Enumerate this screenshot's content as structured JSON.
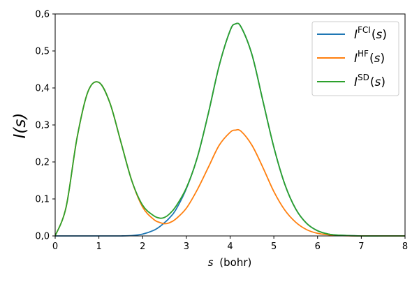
{
  "chart_data": {
    "type": "line",
    "xlabel_var": "s",
    "xlabel_unit": "(bohr)",
    "ylabel": "I(s)",
    "xlim": [
      0,
      8
    ],
    "ylim": [
      0,
      0.6
    ],
    "xticks": [
      0,
      1,
      2,
      3,
      4,
      5,
      6,
      7,
      8
    ],
    "xtick_labels": [
      "0",
      "1",
      "2",
      "3",
      "4",
      "5",
      "6",
      "7",
      "8"
    ],
    "yticks": [
      0,
      0.1,
      0.2,
      0.3,
      0.4,
      0.5,
      0.6
    ],
    "ytick_labels": [
      "0,0",
      "0,1",
      "0,2",
      "0,3",
      "0,4",
      "0,5",
      "0,6"
    ],
    "grid": false,
    "legend_position": "top-right",
    "x": [
      0,
      0.25,
      0.5,
      0.75,
      1.0,
      1.25,
      1.5,
      1.75,
      2.0,
      2.25,
      2.4,
      2.5,
      2.6,
      2.75,
      3.0,
      3.25,
      3.5,
      3.75,
      4.0,
      4.12,
      4.25,
      4.5,
      4.75,
      5.0,
      5.25,
      5.5,
      5.75,
      6.0,
      6.25,
      6.5,
      7.0,
      7.5,
      8.0
    ],
    "series": [
      {
        "name": "I^FCI(s)",
        "color": "#1f77b4",
        "values": [
          0,
          0,
          0,
          0,
          0,
          0,
          0,
          0.001,
          0.005,
          0.015,
          0.026,
          0.036,
          0.047,
          0.069,
          0.128,
          0.212,
          0.33,
          0.46,
          0.555,
          0.573,
          0.565,
          0.49,
          0.365,
          0.24,
          0.14,
          0.073,
          0.034,
          0.014,
          0.005,
          0.002,
          0,
          0,
          0
        ]
      },
      {
        "name": "I^HF(s)",
        "color": "#ff7f0e",
        "values": [
          0,
          0.078,
          0.265,
          0.39,
          0.415,
          0.36,
          0.255,
          0.15,
          0.078,
          0.045,
          0.036,
          0.033,
          0.035,
          0.045,
          0.075,
          0.125,
          0.185,
          0.245,
          0.28,
          0.286,
          0.283,
          0.245,
          0.185,
          0.12,
          0.07,
          0.037,
          0.017,
          0.007,
          0.003,
          0.001,
          0,
          0,
          0
        ]
      },
      {
        "name": "I^SD(s)",
        "color": "#2ca02c",
        "values": [
          0,
          0.078,
          0.265,
          0.39,
          0.415,
          0.36,
          0.255,
          0.15,
          0.083,
          0.055,
          0.048,
          0.05,
          0.058,
          0.078,
          0.13,
          0.212,
          0.33,
          0.46,
          0.555,
          0.573,
          0.565,
          0.49,
          0.365,
          0.24,
          0.14,
          0.073,
          0.034,
          0.014,
          0.005,
          0.002,
          0,
          0,
          0
        ]
      }
    ],
    "legend": [
      {
        "base": "I",
        "sup": "FCI",
        "arg": "(s)",
        "color": "#1f77b4"
      },
      {
        "base": "I",
        "sup": "HF",
        "arg": "(s)",
        "color": "#ff7f0e"
      },
      {
        "base": "I",
        "sup": "SD",
        "arg": "(s)",
        "color": "#2ca02c"
      }
    ]
  }
}
